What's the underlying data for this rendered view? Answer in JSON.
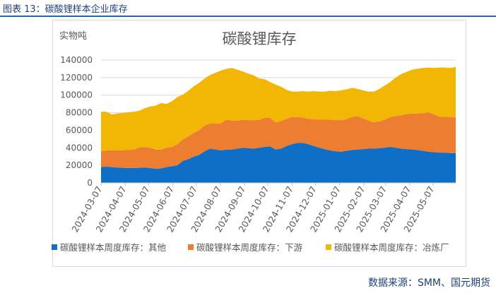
{
  "figure_title": "图表 13：碳酸锂样本企业库存",
  "source": "数据来源：SMM、国元期货",
  "colors": {
    "other": "#0f6fc6",
    "downstream": "#ed7d31",
    "smelter": "#f2b705",
    "axis_text": "#595959",
    "grid": "#d9d9d9",
    "title_color": "#1f3f7a",
    "rule": "#2e62a6"
  },
  "chart_data": {
    "type": "area",
    "stacked": true,
    "title": "碳酸锂库存",
    "ylabel": "实物吨",
    "ylim": [
      0,
      140000
    ],
    "yticks": [
      0,
      20000,
      40000,
      60000,
      80000,
      100000,
      120000,
      140000
    ],
    "ytick_labels": [
      "0",
      "20000",
      "40000",
      "60000",
      "80000",
      "100000",
      "120000",
      "140000"
    ],
    "xticks": [
      "2024-03-07",
      "2024-04-07",
      "2024-05-07",
      "2024-06-07",
      "2024-07-07",
      "2024-08-07",
      "2024-09-07",
      "2024-10-07",
      "2024-11-07",
      "2024-12-07",
      "2025-01-07",
      "2025-02-07",
      "2025-03-07",
      "2025-04-07",
      "2025-05-07"
    ],
    "legend_position": "bottom",
    "x": [
      "2024-03-07",
      "2024-03-14",
      "2024-03-21",
      "2024-03-28",
      "2024-04-04",
      "2024-04-11",
      "2024-04-18",
      "2024-04-25",
      "2024-05-02",
      "2024-05-09",
      "2024-05-16",
      "2024-05-23",
      "2024-05-30",
      "2024-06-06",
      "2024-06-13",
      "2024-06-20",
      "2024-06-27",
      "2024-07-04",
      "2024-07-11",
      "2024-07-18",
      "2024-07-25",
      "2024-08-01",
      "2024-08-08",
      "2024-08-15",
      "2024-08-22",
      "2024-08-29",
      "2024-09-05",
      "2024-09-12",
      "2024-09-19",
      "2024-09-26",
      "2024-10-03",
      "2024-10-10",
      "2024-10-17",
      "2024-10-24",
      "2024-10-31",
      "2024-11-07",
      "2024-11-14",
      "2024-11-21",
      "2024-11-28",
      "2024-12-05",
      "2024-12-12",
      "2024-12-19",
      "2024-12-26",
      "2025-01-02",
      "2025-01-09",
      "2025-01-16",
      "2025-01-23",
      "2025-01-30",
      "2025-02-06",
      "2025-02-13",
      "2025-02-20",
      "2025-02-27",
      "2025-03-06",
      "2025-03-13",
      "2025-03-20",
      "2025-03-27",
      "2025-04-03",
      "2025-04-10",
      "2025-04-17",
      "2025-04-24",
      "2025-05-01",
      "2025-05-08",
      "2025-05-15",
      "2025-05-22",
      "2025-05-29",
      "2025-06-05"
    ],
    "series": [
      {
        "name": "碳酸锂样本周度库存：其他",
        "values": [
          18000,
          18500,
          18000,
          17500,
          17200,
          17000,
          17000,
          17200,
          17500,
          17000,
          16000,
          16500,
          18000,
          19000,
          20000,
          25000,
          27000,
          30000,
          32000,
          36000,
          39000,
          38000,
          37000,
          38000,
          38000,
          39000,
          40000,
          39500,
          39000,
          40000,
          41000,
          41500,
          38000,
          39000,
          42000,
          44000,
          45500,
          45500,
          44000,
          42000,
          40000,
          38500,
          37000,
          36000,
          35500,
          36500,
          37500,
          38000,
          38500,
          39000,
          39000,
          39500,
          40000,
          41000,
          40000,
          39000,
          38500,
          38000,
          37500,
          36500,
          35500,
          35000,
          34500,
          34500,
          34000,
          34000
        ]
      },
      {
        "name": "碳酸锂样本周度库存：下游",
        "values": [
          18000,
          18500,
          19000,
          19500,
          20000,
          20500,
          21000,
          23000,
          23500,
          23000,
          22000,
          21500,
          22000,
          22000,
          24000,
          24500,
          26000,
          27000,
          28000,
          29500,
          29000,
          29500,
          31000,
          34000,
          33000,
          32000,
          32000,
          32000,
          32500,
          32000,
          33000,
          32500,
          31000,
          31500,
          31000,
          31000,
          29500,
          29000,
          29000,
          30500,
          32000,
          33500,
          35000,
          35500,
          36000,
          36000,
          37500,
          38000,
          35000,
          32000,
          30000,
          30500,
          32000,
          34000,
          36000,
          38000,
          40000,
          41000,
          41500,
          43000,
          45000,
          43000,
          41000,
          41000,
          41000,
          41000
        ]
      },
      {
        "name": "碳酸锂样本周度库存：冶炼厂",
        "values": [
          45000,
          44000,
          41000,
          42000,
          42500,
          43000,
          43000,
          42000,
          44000,
          47000,
          50000,
          53000,
          50000,
          52000,
          54000,
          51000,
          52000,
          53000,
          54000,
          53500,
          55000,
          58000,
          60000,
          58000,
          60000,
          58000,
          55000,
          53000,
          51000,
          47000,
          44000,
          41000,
          43000,
          39000,
          33000,
          29000,
          29000,
          30000,
          31000,
          32000,
          32000,
          32000,
          33000,
          33000,
          34000,
          34000,
          33500,
          31000,
          32000,
          33000,
          35000,
          37000,
          39000,
          40000,
          44000,
          47000,
          48000,
          50000,
          51000,
          51500,
          51000,
          53000,
          56000,
          56000,
          56000,
          57000
        ]
      }
    ]
  }
}
